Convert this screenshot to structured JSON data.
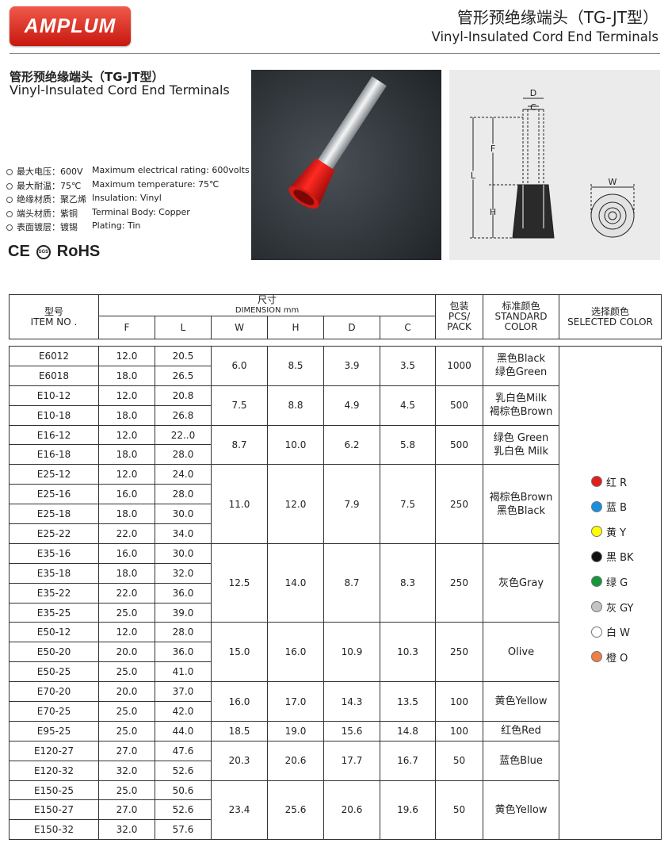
{
  "header": {
    "logo": "AMPLUM",
    "title_cn": "管形预绝缘端头（TG-JT型）",
    "title_en": "Vinyl-Insulated Cord End Terminals"
  },
  "intro": {
    "title_cn": "管形预绝缘端头（TG-JT型）",
    "title_en": "Vinyl-Insulated Cord End Terminals",
    "specs": [
      [
        "最大电压：600V",
        "Maximum electrical rating: 600volts"
      ],
      [
        "最大耐温：75℃",
        "Maximum temperature: 75℃"
      ],
      [
        "绝缘材质：聚乙烯",
        "Insulation: Vinyl"
      ],
      [
        "端头材质：紫铜",
        "Terminal Body: Copper"
      ],
      [
        "表面镀层：镀锡",
        "Plating: Tin"
      ]
    ],
    "certs": [
      "CE",
      "SGS",
      "RoHS"
    ]
  },
  "diagram": {
    "labels": [
      "D",
      "C",
      "F",
      "L",
      "H",
      "W"
    ]
  },
  "table": {
    "header": {
      "item_cn": "型号",
      "item_en": "ITEM NO .",
      "dim_cn": "尺寸",
      "dim_en": "DIMENSION mm",
      "dims": [
        "F",
        "L",
        "W",
        "H",
        "D",
        "C"
      ],
      "pack_cn": "包装",
      "pack_en": "PCS/ PACK",
      "std_cn": "标准颜色",
      "std_en": "STANDARD COLOR",
      "sel_cn": "选择颜色",
      "sel_en": "SELECTED COLOR"
    },
    "groups": [
      {
        "rows": [
          [
            "E6012",
            "12.0",
            "20.5"
          ],
          [
            "E6018",
            "18.0",
            "26.5"
          ]
        ],
        "shared": [
          "6.0",
          "8.5",
          "3.9",
          "3.5",
          "1000"
        ],
        "colors": [
          "黑色Black",
          "绿色Green"
        ]
      },
      {
        "rows": [
          [
            "E10-12",
            "12.0",
            "20.8"
          ],
          [
            "E10-18",
            "18.0",
            "26.8"
          ]
        ],
        "shared": [
          "7.5",
          "8.8",
          "4.9",
          "4.5",
          "500"
        ],
        "colors": [
          "乳白色Milk",
          "褐棕色Brown"
        ]
      },
      {
        "rows": [
          [
            "E16-12",
            "12.0",
            "22..0"
          ],
          [
            "E16-18",
            "18.0",
            "28.0"
          ]
        ],
        "shared": [
          "8.7",
          "10.0",
          "6.2",
          "5.8",
          "500"
        ],
        "colors": [
          "绿色 Green",
          "乳白色 Milk"
        ]
      },
      {
        "rows": [
          [
            "E25-12",
            "12.0",
            "24.0"
          ],
          [
            "E25-16",
            "16.0",
            "28.0"
          ],
          [
            "E25-18",
            "18.0",
            "30.0"
          ],
          [
            "E25-22",
            "22.0",
            "34.0"
          ]
        ],
        "shared": [
          "11.0",
          "12.0",
          "7.9",
          "7.5",
          "250"
        ],
        "colors": [
          "褐棕色Brown",
          "黑色Black"
        ]
      },
      {
        "rows": [
          [
            "E35-16",
            "16.0",
            "30.0"
          ],
          [
            "E35-18",
            "18.0",
            "32.0"
          ],
          [
            "E35-22",
            "22.0",
            "36.0"
          ],
          [
            "E35-25",
            "25.0",
            "39.0"
          ]
        ],
        "shared": [
          "12.5",
          "14.0",
          "8.7",
          "8.3",
          "250"
        ],
        "colors": [
          "灰色Gray"
        ]
      },
      {
        "rows": [
          [
            "E50-12",
            "12.0",
            "28.0"
          ],
          [
            "E50-20",
            "20.0",
            "36.0"
          ],
          [
            "E50-25",
            "25.0",
            "41.0"
          ]
        ],
        "shared": [
          "15.0",
          "16.0",
          "10.9",
          "10.3",
          "250"
        ],
        "colors": [
          "Olive"
        ]
      },
      {
        "rows": [
          [
            "E70-20",
            "20.0",
            "37.0"
          ],
          [
            "E70-25",
            "25.0",
            "42.0"
          ]
        ],
        "shared": [
          "16.0",
          "17.0",
          "14.3",
          "13.5",
          "100"
        ],
        "colors": [
          "黄色Yellow"
        ]
      },
      {
        "rows": [
          [
            "E95-25",
            "25.0",
            "44.0"
          ]
        ],
        "shared": [
          "18.5",
          "19.0",
          "15.6",
          "14.8",
          "100"
        ],
        "colors": [
          "红色Red"
        ]
      },
      {
        "rows": [
          [
            "E120-27",
            "27.0",
            "47.6"
          ],
          [
            "E120-32",
            "32.0",
            "52.6"
          ]
        ],
        "shared": [
          "20.3",
          "20.6",
          "17.7",
          "16.7",
          "50"
        ],
        "colors": [
          "蓝色Blue"
        ]
      },
      {
        "rows": [
          [
            "E150-25",
            "25.0",
            "50.6"
          ],
          [
            "E150-27",
            "27.0",
            "52.6"
          ],
          [
            "E150-32",
            "32.0",
            "57.6"
          ]
        ],
        "shared": [
          "23.4",
          "25.6",
          "20.6",
          "19.6",
          "50"
        ],
        "colors": [
          "黄色Yellow"
        ]
      }
    ],
    "selected_colors": [
      {
        "label": "红 R",
        "color": "#e0201c"
      },
      {
        "label": "蓝 B",
        "color": "#1a8fe0"
      },
      {
        "label": "黄 Y",
        "color": "#ffff00"
      },
      {
        "label": "黑 BK",
        "color": "#111111"
      },
      {
        "label": "绿 G",
        "color": "#17963a"
      },
      {
        "label": "灰 GY",
        "color": "#c4c4c4"
      },
      {
        "label": "白 W",
        "color": "#ffffff"
      },
      {
        "label": "橙 O",
        "color": "#ee7f45"
      }
    ]
  }
}
